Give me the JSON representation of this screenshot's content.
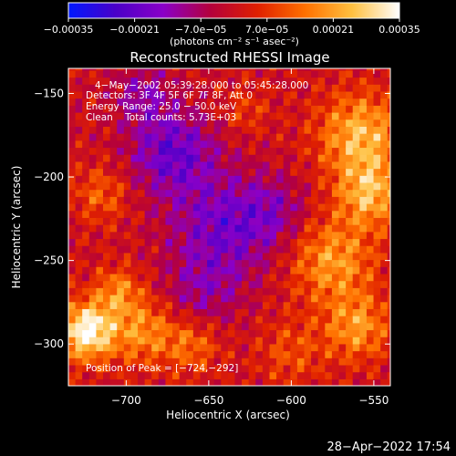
{
  "chart_data": {
    "type": "heatmap",
    "title": "Reconstructed RHESSI Image",
    "xlabel": "Heliocentric X (arcsec)",
    "ylabel": "Heliocentric Y (arcsec)",
    "xlim": [
      -735,
      -540
    ],
    "ylim": [
      -325,
      -135
    ],
    "xticks": [
      -700,
      -650,
      -600,
      -550
    ],
    "yticks": [
      -300,
      -250,
      -200,
      -150
    ],
    "xtick_labels": [
      "−700",
      "−650",
      "−600",
      "−550"
    ],
    "ytick_labels": [
      "−300",
      "−250",
      "−200",
      "−150"
    ],
    "colorbar": {
      "range": [
        -0.00035,
        0.00035
      ],
      "tick_labels": [
        "−0.00035",
        "−0.00021",
        "−7.0e−05",
        "7.0e−05",
        "0.00021",
        "0.00035"
      ],
      "unit_label": "(photons cm⁻² s⁻¹ asec⁻²)",
      "colors": [
        "#0018ff",
        "#4a00c8",
        "#8a00c8",
        "#b4003c",
        "#e02000",
        "#ff7000",
        "#ffc040",
        "#ffffff"
      ]
    },
    "annotations": [
      "4−May−2002 05:39:28.000 to 05:45:28.000",
      "Detectors: 3F 4F 5F 6F 7F 8F, Att 0",
      "Energy Range: 25.0 − 50.0 keV",
      "Clean    Total counts: 5.73E+03"
    ],
    "peak_label": "Position of Peak = [−724,−292]",
    "peak": [
      -724,
      -292
    ],
    "grid_resolution_arcsec": 4.2,
    "features": [
      {
        "x": -724,
        "y": -292,
        "sigma": 12,
        "amp": 0.00036
      },
      {
        "x": -705,
        "y": -268,
        "sigma": 10,
        "amp": 0.00016
      },
      {
        "x": -690,
        "y": -292,
        "sigma": 14,
        "amp": 0.00018
      },
      {
        "x": -660,
        "y": -300,
        "sigma": 12,
        "amp": 0.00014
      },
      {
        "x": -715,
        "y": -210,
        "sigma": 12,
        "amp": 0.00012
      },
      {
        "x": -558,
        "y": -175,
        "sigma": 18,
        "amp": 0.00024
      },
      {
        "x": -552,
        "y": -210,
        "sigma": 14,
        "amp": 0.00022
      },
      {
        "x": -575,
        "y": -250,
        "sigma": 18,
        "amp": 0.0002
      },
      {
        "x": -560,
        "y": -290,
        "sigma": 14,
        "amp": 0.00019
      },
      {
        "x": -600,
        "y": -305,
        "sigma": 14,
        "amp": 0.0001
      },
      {
        "x": -628,
        "y": -160,
        "sigma": 10,
        "amp": 8e-05
      },
      {
        "x": -672,
        "y": -185,
        "sigma": 18,
        "amp": -0.0002
      },
      {
        "x": -640,
        "y": -230,
        "sigma": 22,
        "amp": -0.00018
      },
      {
        "x": -690,
        "y": -150,
        "sigma": 12,
        "amp": -0.00012
      },
      {
        "x": -610,
        "y": -220,
        "sigma": 14,
        "amp": -0.0001
      },
      {
        "x": -655,
        "y": -270,
        "sigma": 16,
        "amp": -0.0001
      }
    ]
  },
  "footer": {
    "timestamp": "28−Apr−2022 17:54"
  }
}
